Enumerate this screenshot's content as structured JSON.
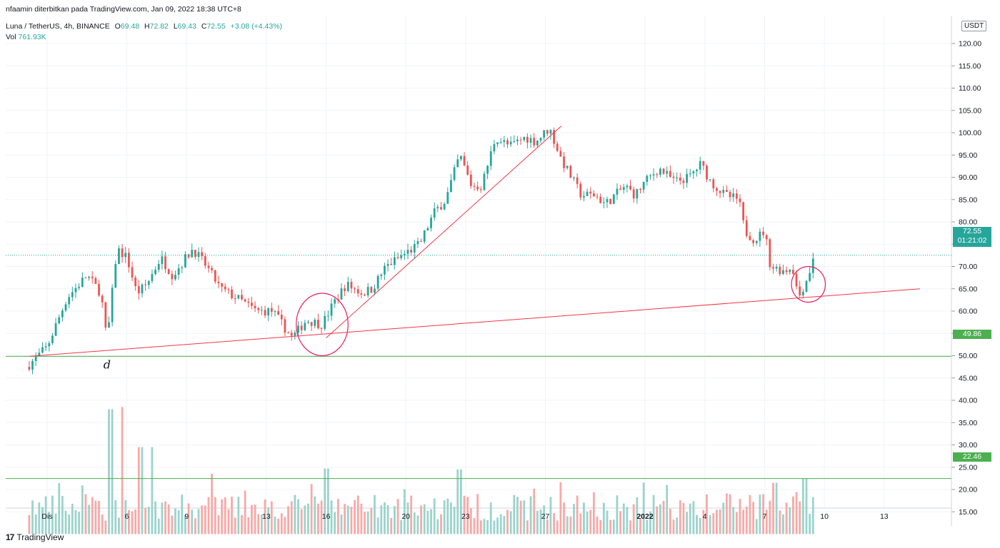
{
  "header": {
    "published": "nfaamin diterbitkan pada TradingView.com, Jan 09, 2022 18:38 UTC+8",
    "symbol": "Luna / TetherUS, 4h, BINANCE",
    "open_label": "O",
    "open": "69.48",
    "high_label": "H",
    "high": "72.82",
    "low_label": "L",
    "low": "69.43",
    "close_label": "C",
    "close": "72.55",
    "change": "+3.08 (+4.43%)",
    "vol_label": "Vol",
    "vol": "761.93K"
  },
  "unit": "USDT",
  "price_labels": {
    "last_price": "72.55",
    "countdown": "01:21:02",
    "support": "49.86",
    "vol_level": "22.46"
  },
  "annotation": "d",
  "footer": {
    "brand": "TradingView"
  },
  "colors": {
    "up": "#26a69a",
    "down": "#ef5350",
    "trend": "#f23645",
    "support": "#4caf50",
    "circle": "#e91e63"
  },
  "chart_data": {
    "type": "candlestick",
    "y_ticks": [
      "15.00",
      "20.00",
      "25.00",
      "30.00",
      "35.00",
      "40.00",
      "45.00",
      "50.00",
      "55.00",
      "60.00",
      "65.00",
      "70.00",
      "75.00",
      "80.00",
      "85.00",
      "90.00",
      "95.00",
      "100.00",
      "105.00",
      "110.00",
      "115.00",
      "120.00"
    ],
    "ylim": [
      10,
      120
    ],
    "x_ticks": [
      {
        "label": "Dis",
        "day": 2
      },
      {
        "label": "6",
        "day": 6
      },
      {
        "label": "9",
        "day": 9
      },
      {
        "label": "13",
        "day": 13
      },
      {
        "label": "16",
        "day": 16
      },
      {
        "label": "20",
        "day": 20
      },
      {
        "label": "23",
        "day": 23
      },
      {
        "label": "27",
        "day": 27
      },
      {
        "label": "2022",
        "day": 32,
        "bold": true
      },
      {
        "label": "4",
        "day": 35
      },
      {
        "label": "7",
        "day": 38
      },
      {
        "label": "10",
        "day": 41
      },
      {
        "label": "13",
        "day": 44
      }
    ],
    "keyframes": [
      {
        "day": 1.1,
        "price": 48
      },
      {
        "day": 2.0,
        "price": 52
      },
      {
        "day": 3.0,
        "price": 63
      },
      {
        "day": 4.0,
        "price": 68
      },
      {
        "day": 4.7,
        "price": 64
      },
      {
        "day": 5.0,
        "price": 53
      },
      {
        "day": 5.5,
        "price": 74
      },
      {
        "day": 6.0,
        "price": 72
      },
      {
        "day": 6.5,
        "price": 64
      },
      {
        "day": 7.0,
        "price": 66
      },
      {
        "day": 7.7,
        "price": 72
      },
      {
        "day": 8.3,
        "price": 68
      },
      {
        "day": 9.3,
        "price": 74
      },
      {
        "day": 10.0,
        "price": 70
      },
      {
        "day": 10.7,
        "price": 65
      },
      {
        "day": 11.5,
        "price": 63
      },
      {
        "day": 12.5,
        "price": 60
      },
      {
        "day": 13.3,
        "price": 60
      },
      {
        "day": 14.3,
        "price": 54
      },
      {
        "day": 15.0,
        "price": 58
      },
      {
        "day": 15.8,
        "price": 57
      },
      {
        "day": 16.4,
        "price": 62
      },
      {
        "day": 17.0,
        "price": 66
      },
      {
        "day": 17.8,
        "price": 64
      },
      {
        "day": 18.3,
        "price": 65
      },
      {
        "day": 19.0,
        "price": 70
      },
      {
        "day": 20.0,
        "price": 73
      },
      {
        "day": 20.7,
        "price": 75
      },
      {
        "day": 21.4,
        "price": 82
      },
      {
        "day": 22.0,
        "price": 85
      },
      {
        "day": 22.7,
        "price": 95
      },
      {
        "day": 23.3,
        "price": 88
      },
      {
        "day": 23.8,
        "price": 88
      },
      {
        "day": 24.5,
        "price": 99
      },
      {
        "day": 25.2,
        "price": 97
      },
      {
        "day": 26.0,
        "price": 99
      },
      {
        "day": 26.5,
        "price": 98
      },
      {
        "day": 27.2,
        "price": 101
      },
      {
        "day": 27.8,
        "price": 94
      },
      {
        "day": 28.3,
        "price": 90
      },
      {
        "day": 28.8,
        "price": 86
      },
      {
        "day": 29.5,
        "price": 86
      },
      {
        "day": 30.0,
        "price": 84
      },
      {
        "day": 30.5,
        "price": 86
      },
      {
        "day": 31.0,
        "price": 88
      },
      {
        "day": 31.5,
        "price": 86
      },
      {
        "day": 32.0,
        "price": 89
      },
      {
        "day": 32.7,
        "price": 92
      },
      {
        "day": 33.5,
        "price": 89
      },
      {
        "day": 34.2,
        "price": 90
      },
      {
        "day": 34.8,
        "price": 93
      },
      {
        "day": 35.3,
        "price": 89
      },
      {
        "day": 36.0,
        "price": 86
      },
      {
        "day": 36.7,
        "price": 85
      },
      {
        "day": 37.0,
        "price": 78
      },
      {
        "day": 37.5,
        "price": 76
      },
      {
        "day": 38.0,
        "price": 78
      },
      {
        "day": 38.3,
        "price": 70
      },
      {
        "day": 39.0,
        "price": 69
      },
      {
        "day": 39.4,
        "price": 70
      },
      {
        "day": 39.7,
        "price": 63
      },
      {
        "day": 40.2,
        "price": 68
      },
      {
        "day": 40.5,
        "price": 72.55
      }
    ],
    "trendlines": [
      {
        "name": "support-trend",
        "from": {
          "day": 1.1,
          "price": 49.86
        },
        "to": {
          "day": 45.8,
          "price": 65
        }
      },
      {
        "name": "rising-trend",
        "from": {
          "day": 16.0,
          "price": 54
        },
        "to": {
          "day": 27.8,
          "price": 101.5
        }
      }
    ],
    "horizontal_lines": [
      {
        "name": "support-level",
        "price": 49.86
      },
      {
        "name": "volume-level",
        "price": 22.46
      },
      {
        "name": "last-price",
        "price": 72.55
      }
    ],
    "circles": [
      {
        "name": "circle-left",
        "day": 15.8,
        "price": 57,
        "rx_days": 1.3,
        "ry_price": 7
      },
      {
        "name": "circle-right",
        "day": 40.2,
        "price": 66,
        "rx_days": 0.85,
        "ry_price": 4
      }
    ],
    "volume": {
      "baseline_price": 10,
      "max_price": 38.5,
      "spikes": [
        {
          "day": 5.2,
          "price": 38
        },
        {
          "day": 5.8,
          "price": 38.5
        },
        {
          "day": 6.7,
          "price": 29.5
        },
        {
          "day": 7.3,
          "price": 29.5
        },
        {
          "day": 10.3,
          "price": 23.5
        },
        {
          "day": 16.0,
          "price": 24.7
        },
        {
          "day": 22.7,
          "price": 24.5
        },
        {
          "day": 40.0,
          "price": 22.5
        },
        {
          "day": 38.5,
          "price": 21.5
        }
      ]
    }
  }
}
